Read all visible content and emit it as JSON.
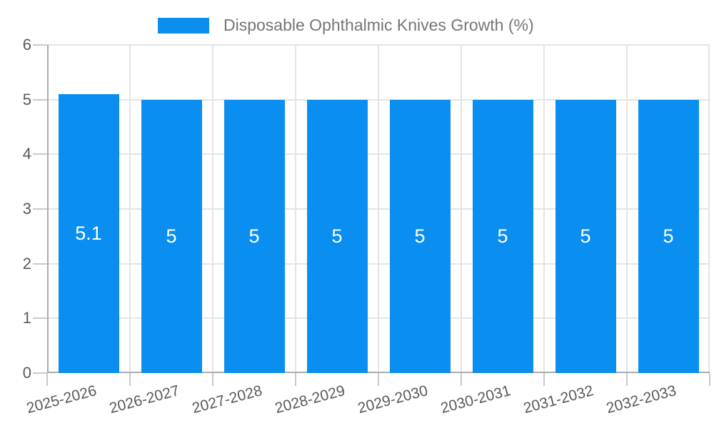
{
  "legend": {
    "label": "Disposable Ophthalmic Knives Growth (%)"
  },
  "chart_data": {
    "type": "bar",
    "title": "Disposable Ophthalmic Knives Growth (%)",
    "categories": [
      "2025-2026",
      "2026-2027",
      "2027-2028",
      "2028-2029",
      "2029-2030",
      "2030-2031",
      "2031-2032",
      "2032-2033"
    ],
    "values": [
      5.1,
      5,
      5,
      5,
      5,
      5,
      5,
      5
    ],
    "bar_labels": [
      "5.1",
      "5",
      "5",
      "5",
      "5",
      "5",
      "5",
      "5"
    ],
    "xlabel": "",
    "ylabel": "",
    "ylim": [
      0,
      6
    ],
    "yticks": [
      0,
      1,
      2,
      3,
      4,
      5,
      6
    ],
    "grid": true,
    "legend_position": "top",
    "x_label_rotation_deg": -15,
    "colors": {
      "bar": "#0a8ff0",
      "grid": "#e4e4e4",
      "axis": "#ababab",
      "tick": "#c9c9c9",
      "axis_label": "#595959",
      "legend_text": "#757575",
      "value_label": "#ffffff",
      "background": "#ffffff"
    }
  }
}
